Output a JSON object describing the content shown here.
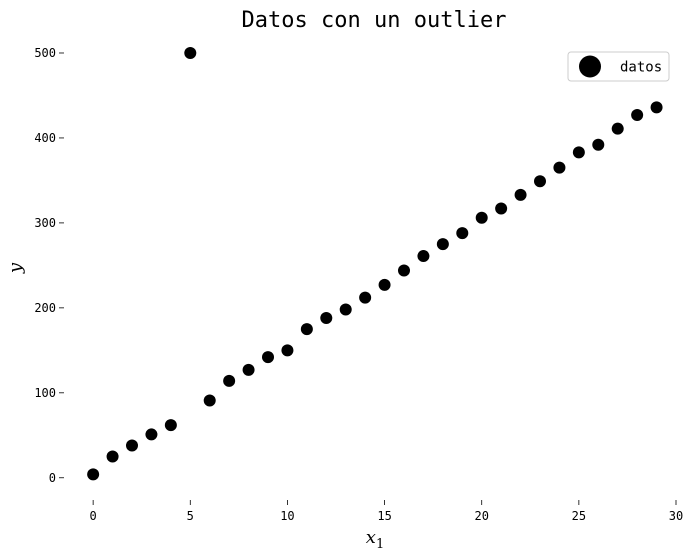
{
  "chart_data": {
    "type": "scatter",
    "title": "Datos con un outlier",
    "xlabel": "x",
    "xlabel_subscript": "1",
    "ylabel": "y",
    "xlim": [
      -1.5,
      30
    ],
    "ylim": [
      -25,
      520
    ],
    "xticks": [
      0,
      5,
      10,
      15,
      20,
      25,
      30
    ],
    "yticks": [
      0,
      100,
      200,
      300,
      400,
      500
    ],
    "grid": false,
    "legend_position": "top-right",
    "marker_color": "#000000",
    "series": [
      {
        "name": "datos",
        "points": [
          [
            0,
            4
          ],
          [
            1,
            25
          ],
          [
            2,
            38
          ],
          [
            3,
            51
          ],
          [
            4,
            62
          ],
          [
            5,
            500
          ],
          [
            6,
            91
          ],
          [
            7,
            114
          ],
          [
            8,
            127
          ],
          [
            9,
            142
          ],
          [
            10,
            150
          ],
          [
            11,
            175
          ],
          [
            12,
            188
          ],
          [
            13,
            198
          ],
          [
            14,
            212
          ],
          [
            15,
            227
          ],
          [
            16,
            244
          ],
          [
            17,
            261
          ],
          [
            18,
            275
          ],
          [
            19,
            288
          ],
          [
            20,
            306
          ],
          [
            21,
            317
          ],
          [
            22,
            333
          ],
          [
            23,
            349
          ],
          [
            24,
            365
          ],
          [
            25,
            383
          ],
          [
            26,
            392
          ],
          [
            27,
            411
          ],
          [
            28,
            427
          ],
          [
            29,
            436
          ]
        ]
      }
    ]
  }
}
